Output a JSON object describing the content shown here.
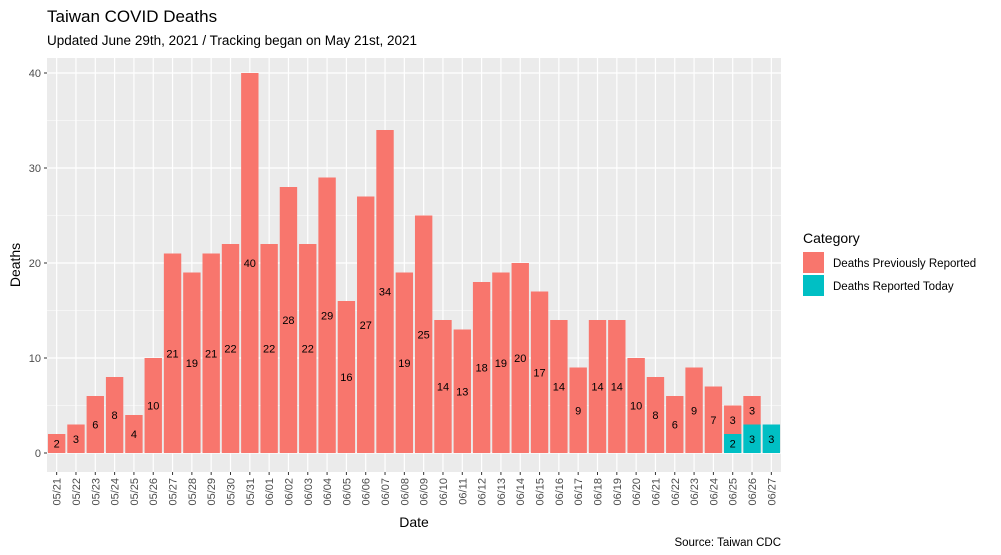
{
  "chart_data": {
    "type": "bar",
    "stacked": true,
    "title": "Taiwan COVID Deaths",
    "subtitle": "Updated June 29th, 2021 / Tracking began on May 21st, 2021",
    "xlabel": "Date",
    "ylabel": "Deaths",
    "caption": "Source: Taiwan CDC",
    "ylim": [
      0,
      42
    ],
    "yticks": [
      0,
      10,
      20,
      30,
      40
    ],
    "grid": true,
    "legend": {
      "title": "Category",
      "placement": "right"
    },
    "categories": [
      "05/21",
      "05/22",
      "05/23",
      "05/24",
      "05/25",
      "05/26",
      "05/27",
      "05/28",
      "05/29",
      "05/30",
      "05/31",
      "06/01",
      "06/02",
      "06/03",
      "06/04",
      "06/05",
      "06/06",
      "06/07",
      "06/08",
      "06/09",
      "06/10",
      "06/11",
      "06/12",
      "06/13",
      "06/14",
      "06/15",
      "06/16",
      "06/17",
      "06/18",
      "06/19",
      "06/20",
      "06/21",
      "06/22",
      "06/23",
      "06/24",
      "06/25",
      "06/26",
      "06/27"
    ],
    "series": [
      {
        "name": "Deaths Previously Reported",
        "color": "#F8766D",
        "values": [
          2,
          3,
          6,
          8,
          4,
          10,
          21,
          19,
          21,
          22,
          40,
          22,
          28,
          22,
          29,
          16,
          27,
          34,
          19,
          25,
          14,
          13,
          18,
          19,
          20,
          17,
          14,
          9,
          14,
          14,
          10,
          8,
          6,
          9,
          7,
          3,
          3,
          0
        ]
      },
      {
        "name": "Deaths Reported Today",
        "color": "#00BFC4",
        "values": [
          0,
          0,
          0,
          0,
          0,
          0,
          0,
          0,
          0,
          0,
          0,
          0,
          0,
          0,
          0,
          0,
          0,
          0,
          0,
          0,
          0,
          0,
          0,
          0,
          0,
          0,
          0,
          0,
          0,
          0,
          0,
          0,
          0,
          0,
          0,
          2,
          3,
          3
        ]
      }
    ]
  },
  "colors": {
    "panel_background": "#EBEBEB",
    "gridline": "#FFFFFF"
  }
}
